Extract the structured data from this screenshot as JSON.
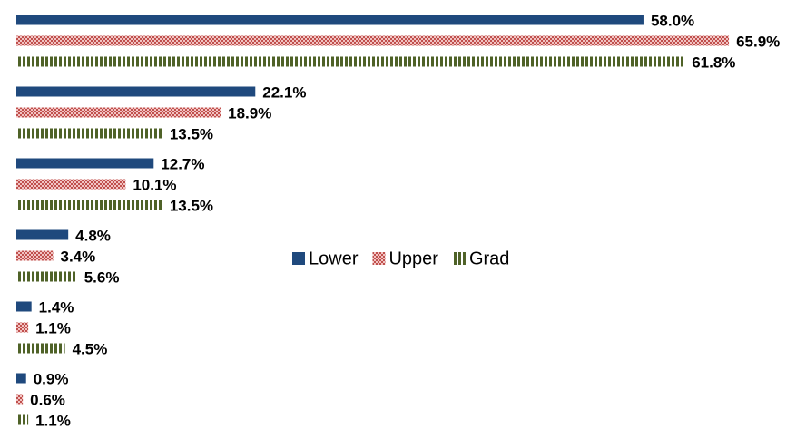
{
  "chart_data": {
    "type": "bar",
    "orientation": "horizontal",
    "categories": [
      null,
      null,
      null,
      null,
      null,
      null
    ],
    "series": [
      {
        "name": "Lower",
        "color": "#1f497d",
        "pattern": "solid",
        "values": [
          58.0,
          22.1,
          12.7,
          4.8,
          1.4,
          0.9
        ],
        "value_labels": [
          "58.0%",
          "22.1%",
          "12.7%",
          "4.8%",
          "1.4%",
          "0.9%"
        ]
      },
      {
        "name": "Upper",
        "color": "#c0504d",
        "pattern": "checker",
        "values": [
          65.9,
          18.9,
          10.1,
          3.4,
          1.1,
          0.6
        ],
        "value_labels": [
          "65.9%",
          "18.9%",
          "10.1%",
          "3.4%",
          "1.1%",
          "0.6%"
        ]
      },
      {
        "name": "Grad",
        "color": "#4f6228",
        "pattern": "stripes",
        "values": [
          61.8,
          13.5,
          13.5,
          5.6,
          4.5,
          1.1
        ],
        "value_labels": [
          "61.8%",
          "13.5%",
          "13.5%",
          "5.6%",
          "4.5%",
          "1.1%"
        ]
      }
    ]
  }
}
